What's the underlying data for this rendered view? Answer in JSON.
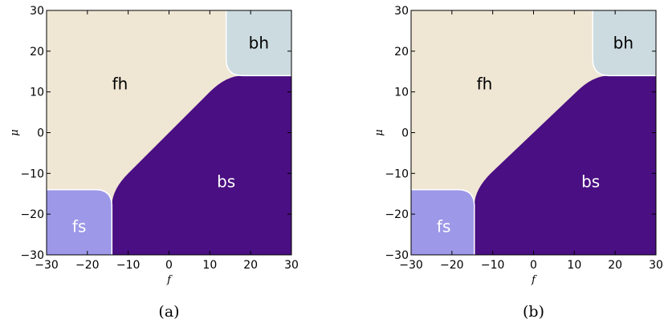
{
  "chart_data": [
    {
      "type": "area",
      "caption": "(a)",
      "xlabel": "f",
      "ylabel": "μ",
      "xlim": [
        -30,
        30
      ],
      "ylim": [
        -30,
        30
      ],
      "xticks": [
        -30,
        -20,
        -10,
        0,
        10,
        20,
        30
      ],
      "yticks": [
        -30,
        -20,
        -10,
        0,
        10,
        20,
        30
      ],
      "grid": false,
      "regions": [
        {
          "label": "fh",
          "color": "#efe6d4",
          "text_color": "#000000",
          "label_at": [
            -12,
            12
          ]
        },
        {
          "label": "bh",
          "color": "#ccdbe0",
          "text_color": "#000000",
          "label_at": [
            22,
            22
          ]
        },
        {
          "label": "fs",
          "color": "#9e98e8",
          "text_color": "#ffffff",
          "label_at": [
            -22,
            -23
          ]
        },
        {
          "label": "bs",
          "color": "#4a0f82",
          "text_color": "#ffffff",
          "label_at": [
            14,
            -12
          ]
        }
      ],
      "boundaries": {
        "f_threshold": 14,
        "mu_threshold": 14,
        "line_color": "#ffffff"
      }
    },
    {
      "type": "area",
      "caption": "(b)",
      "xlabel": "f",
      "ylabel": "μ",
      "xlim": [
        -30,
        30
      ],
      "ylim": [
        -30,
        30
      ],
      "xticks": [
        -30,
        -20,
        -10,
        0,
        10,
        20,
        30
      ],
      "yticks": [
        -30,
        -20,
        -10,
        0,
        10,
        20,
        30
      ],
      "grid": false,
      "regions": [
        {
          "label": "fh",
          "color": "#efe6d4",
          "text_color": "#000000",
          "label_at": [
            -12,
            12
          ]
        },
        {
          "label": "bh",
          "color": "#ccdbe0",
          "text_color": "#000000",
          "label_at": [
            22,
            22
          ]
        },
        {
          "label": "fs",
          "color": "#9e98e8",
          "text_color": "#ffffff",
          "label_at": [
            -22,
            -23
          ]
        },
        {
          "label": "bs",
          "color": "#4a0f82",
          "text_color": "#ffffff",
          "label_at": [
            14,
            -12
          ]
        }
      ],
      "boundaries": {
        "f_threshold": 14.5,
        "mu_threshold": 14,
        "line_color": "#ffffff"
      }
    }
  ]
}
